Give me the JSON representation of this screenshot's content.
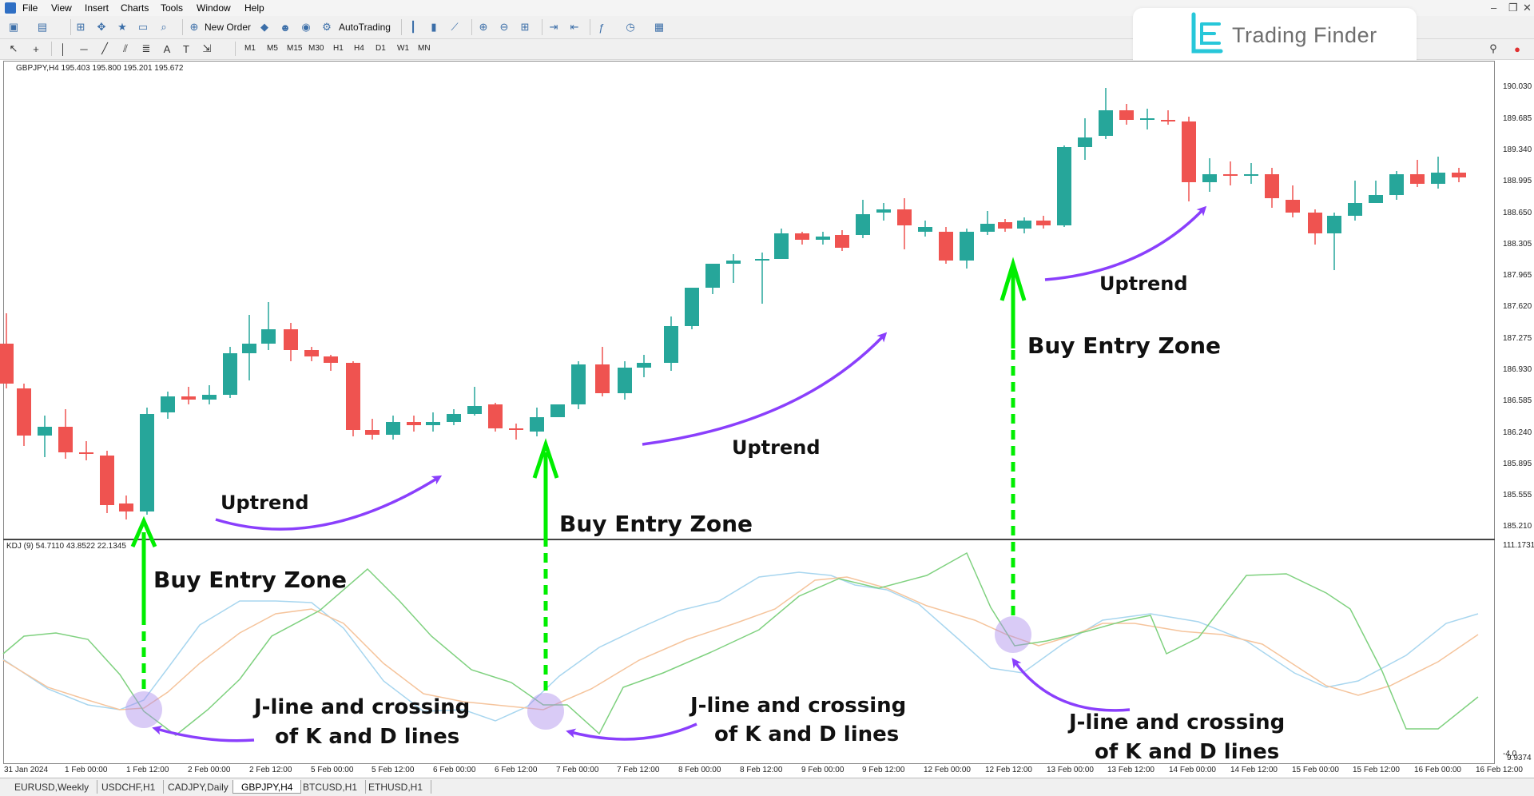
{
  "menu": [
    "File",
    "View",
    "Insert",
    "Charts",
    "Tools",
    "Window",
    "Help"
  ],
  "toolbar": {
    "new_order": "New Order",
    "autotrading": "AutoTrading",
    "timeframes": [
      "M1",
      "M5",
      "M15",
      "M30",
      "H1",
      "H4",
      "D1",
      "W1",
      "MN"
    ]
  },
  "brand": {
    "name": "Trading Finder"
  },
  "chart": {
    "info": "GBPJPY,H4  195.403 195.800 195.201 195.672",
    "price_labels": [
      "190.030",
      "189.685",
      "189.340",
      "188.995",
      "188.650",
      "188.305",
      "187.965",
      "187.620",
      "187.275",
      "186.930",
      "186.585",
      "186.240",
      "185.895",
      "185.555",
      "185.210"
    ],
    "time_labels": [
      "31 Jan 2024",
      "1 Feb 00:00",
      "1 Feb 12:00",
      "2 Feb 00:00",
      "2 Feb 12:00",
      "5 Feb 00:00",
      "5 Feb 12:00",
      "6 Feb 00:00",
      "6 Feb 12:00",
      "7 Feb 00:00",
      "7 Feb 12:00",
      "8 Feb 00:00",
      "8 Feb 12:00",
      "9 Feb 00:00",
      "9 Feb 12:00",
      "12 Feb 00:00",
      "12 Feb 12:00",
      "13 Feb 00:00",
      "13 Feb 12:00",
      "14 Feb 00:00",
      "14 Feb 12:00",
      "15 Feb 00:00",
      "15 Feb 12:00",
      "16 Feb 00:00",
      "16 Feb 12:00"
    ]
  },
  "indicator": {
    "info": "KDJ (9) 54.7110 43.8522 22.1345",
    "max_label": "111.1731",
    "min_label": "-4.0",
    "min_label2": "9.9374"
  },
  "annotations": {
    "uptrend": "Uptrend",
    "buy_entry": "Buy Entry Zone",
    "cross_line1": "J-line and crossing",
    "cross_line2": "of K and D lines"
  },
  "tabs": [
    "EURUSD,Weekly",
    "USDCHF,H1",
    "CADJPY,Daily",
    "GBPJPY,H4",
    "BTCUSD,H1",
    "ETHUSD,H1"
  ],
  "colors": {
    "bull": "#26a69a",
    "bear": "#ef5350",
    "arrow_green": "#00ee00",
    "arrow_purple": "#8a3ffc",
    "j_line": "#7fd17f",
    "k_line": "#f5c49c",
    "d_line": "#a8d6ef"
  }
}
